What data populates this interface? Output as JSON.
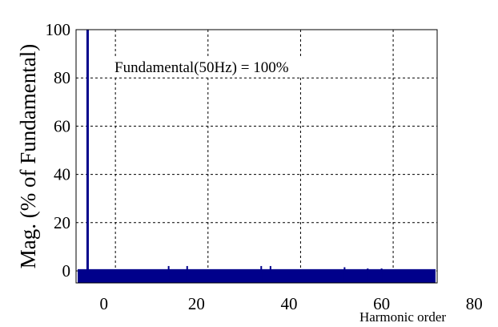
{
  "chart_data": {
    "type": "bar",
    "xlabel": "Harmonic order",
    "ylabel": "Mag. (% of Fundamental)",
    "annotation": "Fundamental(50Hz) = 100%",
    "xlim": [
      -6,
      72
    ],
    "ylim": [
      -5,
      100
    ],
    "grid": true,
    "xticks": [
      0,
      20,
      40,
      60,
      80
    ],
    "yticks": [
      0,
      20,
      40,
      60,
      80,
      100
    ],
    "bar_color": "#00008b",
    "series": [
      {
        "x": [
          -3.5,
          14,
          18,
          34,
          36,
          52,
          57,
          60
        ],
        "values": [
          100,
          2,
          2,
          2,
          2,
          1.5,
          1,
          1
        ]
      }
    ],
    "noise_floor": 0.7
  }
}
